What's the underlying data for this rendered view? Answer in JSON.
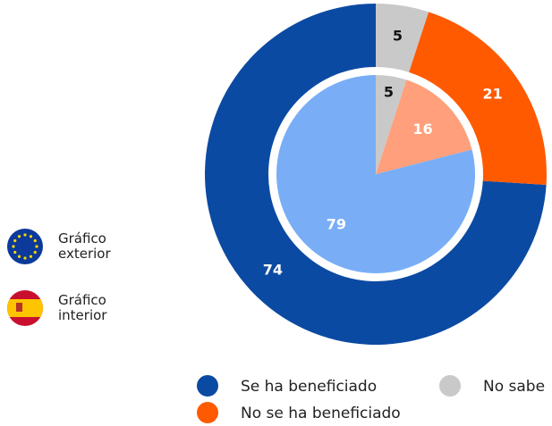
{
  "chart_data": {
    "type": "nested-pie",
    "categories": [
      "Se ha beneficiado",
      "No se ha beneficiado",
      "No sabe"
    ],
    "series": [
      {
        "name": "Gráfico exterior",
        "colors": [
          "#0b4aa2",
          "#ff5a00",
          "#c9c9c9"
        ],
        "values": [
          74,
          21,
          5
        ]
      },
      {
        "name": "Gráfico interior",
        "colors": [
          "#79aef6",
          "#ff9f7b",
          "#c9c9c9"
        ],
        "values": [
          79,
          16,
          5
        ]
      }
    ]
  }
}
